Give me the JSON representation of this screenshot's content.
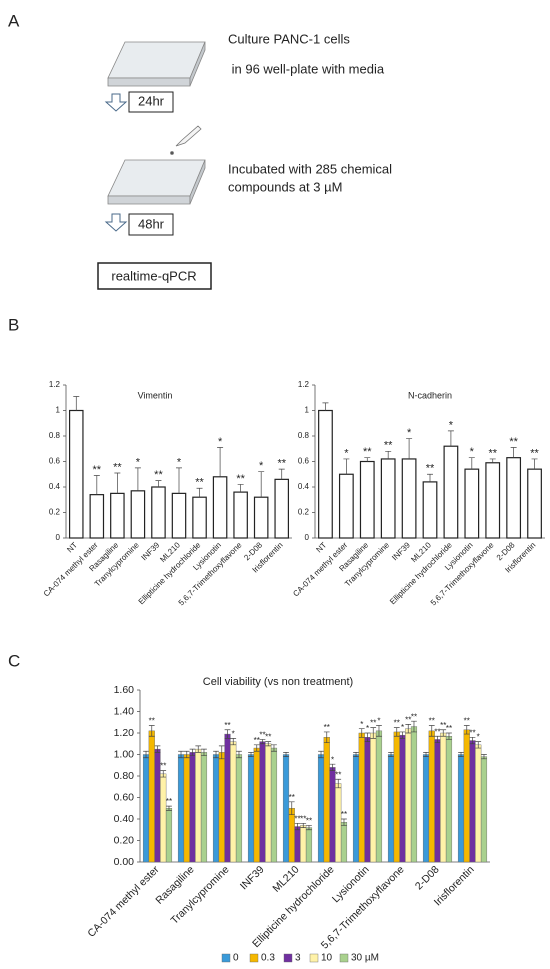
{
  "panel_labels": [
    "A",
    "B",
    "C"
  ],
  "workflow": {
    "step1": [
      "Culture PANC-1 cells",
      " in 96 well-plate with media"
    ],
    "time1": "24hr",
    "step2": [
      "Incubated with 285 chemical",
      "compounds at 3 µM"
    ],
    "time2": "48hr",
    "readout": "realtime-qPCR"
  },
  "chart_data": [
    {
      "type": "bar",
      "title": "Vimentin",
      "categories": [
        "NT",
        "CA-074 methyl ester",
        "Rasagiline",
        "Tranylcypromine",
        "INF39",
        "ML210",
        "Ellipticine hydrochloride",
        "Lysionotin",
        "5,6,7-Trimethoxyflavone",
        "2-D08",
        "Irisflorentin"
      ],
      "values": [
        1.0,
        0.34,
        0.35,
        0.37,
        0.4,
        0.35,
        0.32,
        0.48,
        0.36,
        0.32,
        0.46
      ],
      "errors": [
        0.11,
        0.15,
        0.16,
        0.18,
        0.05,
        0.2,
        0.07,
        0.23,
        0.06,
        0.2,
        0.08
      ],
      "annotations": [
        null,
        "**",
        "**",
        "*",
        "**",
        "*",
        "**",
        "*",
        "**",
        "*",
        "**"
      ],
      "color": "#ffffff",
      "ylim": [
        0,
        1.2
      ],
      "yticks": [
        0,
        0.2,
        0.4,
        0.6,
        0.8,
        1,
        1.2
      ]
    },
    {
      "type": "bar",
      "title": "N-cadherin",
      "categories": [
        "NT",
        "CA-074 methyl ester",
        "Rasagiline",
        "Tranylcypromine",
        "INF39",
        "ML210",
        "Ellipticine hydrochloride",
        "Lysionotin",
        "5,6,7-Trimethoxyflavone",
        "2-D08",
        "Irisflorentin"
      ],
      "values": [
        1.0,
        0.5,
        0.6,
        0.62,
        0.62,
        0.44,
        0.72,
        0.54,
        0.59,
        0.63,
        0.54
      ],
      "errors": [
        0.06,
        0.12,
        0.03,
        0.06,
        0.16,
        0.06,
        0.12,
        0.09,
        0.03,
        0.08,
        0.08
      ],
      "annotations": [
        null,
        "*",
        "**",
        "**",
        "*",
        "**",
        "*",
        "*",
        "**",
        "**",
        "**"
      ],
      "color": "#ffffff",
      "ylim": [
        0,
        1.2
      ],
      "yticks": [
        0,
        0.2,
        0.4,
        0.6,
        0.8,
        1,
        1.2
      ]
    },
    {
      "type": "bar",
      "title": "Cell viability (vs non treatment)",
      "categories": [
        "CA-074 methyl ester",
        "Rasagiline",
        "Tranylcypromine",
        "INF39",
        "ML210",
        "Ellipticine hydrochloride",
        "Lysionotin",
        "5,6,7-Trimethoxyflavone",
        "2-D08",
        "Irisflorentin"
      ],
      "series": [
        {
          "name": "0",
          "color": "#3a9ad9",
          "values": [
            1.0,
            1.0,
            1.0,
            1.0,
            1.0,
            1.0,
            1.0,
            1.0,
            1.0,
            1.0
          ],
          "errors": [
            0.03,
            0.03,
            0.03,
            0.02,
            0.02,
            0.03,
            0.02,
            0.02,
            0.02,
            0.02
          ],
          "annotations": [
            null,
            null,
            null,
            null,
            null,
            null,
            null,
            null,
            null,
            null
          ]
        },
        {
          "name": "0.3",
          "color": "#f5b800",
          "values": [
            1.22,
            1.0,
            1.02,
            1.06,
            0.5,
            1.16,
            1.2,
            1.21,
            1.22,
            1.23
          ],
          "errors": [
            0.05,
            0.03,
            0.06,
            0.03,
            0.06,
            0.05,
            0.04,
            0.04,
            0.05,
            0.04
          ],
          "annotations": [
            "**",
            null,
            null,
            "**",
            "**",
            "**",
            "*",
            "**",
            "**",
            "**"
          ]
        },
        {
          "name": "3",
          "color": "#7030a0",
          "values": [
            1.05,
            1.02,
            1.19,
            1.12,
            0.33,
            0.88,
            1.16,
            1.18,
            1.14,
            1.13
          ],
          "errors": [
            0.03,
            0.03,
            0.04,
            0.02,
            0.03,
            0.03,
            0.04,
            0.03,
            0.03,
            0.03
          ],
          "annotations": [
            null,
            null,
            "**",
            "**",
            "**",
            "*",
            "*",
            "*",
            "**",
            "**"
          ]
        },
        {
          "name": "10",
          "color": "#fff2a8",
          "values": [
            0.82,
            1.05,
            1.12,
            1.1,
            0.34,
            0.73,
            1.2,
            1.24,
            1.2,
            1.09
          ],
          "errors": [
            0.03,
            0.03,
            0.03,
            0.02,
            0.02,
            0.04,
            0.05,
            0.04,
            0.03,
            0.03
          ],
          "annotations": [
            "**",
            null,
            "*",
            "**",
            "**",
            "**",
            "**",
            "**",
            "**",
            "*"
          ]
        },
        {
          "name": "30 µM",
          "color": "#a9d18e",
          "values": [
            0.5,
            1.02,
            1.0,
            1.06,
            0.32,
            0.37,
            1.22,
            1.26,
            1.17,
            0.98
          ],
          "errors": [
            0.02,
            0.03,
            0.03,
            0.03,
            0.02,
            0.03,
            0.05,
            0.05,
            0.03,
            0.02
          ],
          "annotations": [
            "**",
            null,
            null,
            null,
            "**",
            "**",
            "*",
            "**",
            "**",
            null
          ]
        }
      ],
      "ylim": [
        0,
        1.6
      ],
      "yticks": [
        {
          "value": 0,
          "label": "0.00"
        },
        {
          "value": 0.2,
          "label": "0.20"
        },
        {
          "value": 0.4,
          "label": "0.40"
        },
        {
          "value": 0.6,
          "label": "0.60"
        },
        {
          "value": 0.8,
          "label": "0.80"
        },
        {
          "value": 1.0,
          "label": "1.00"
        },
        {
          "value": 1.2,
          "label": "1.20"
        },
        {
          "value": 1.4,
          "label": "1.40"
        },
        {
          "value": 1.6,
          "label": "1.60"
        }
      ],
      "legend": "bottom"
    }
  ]
}
